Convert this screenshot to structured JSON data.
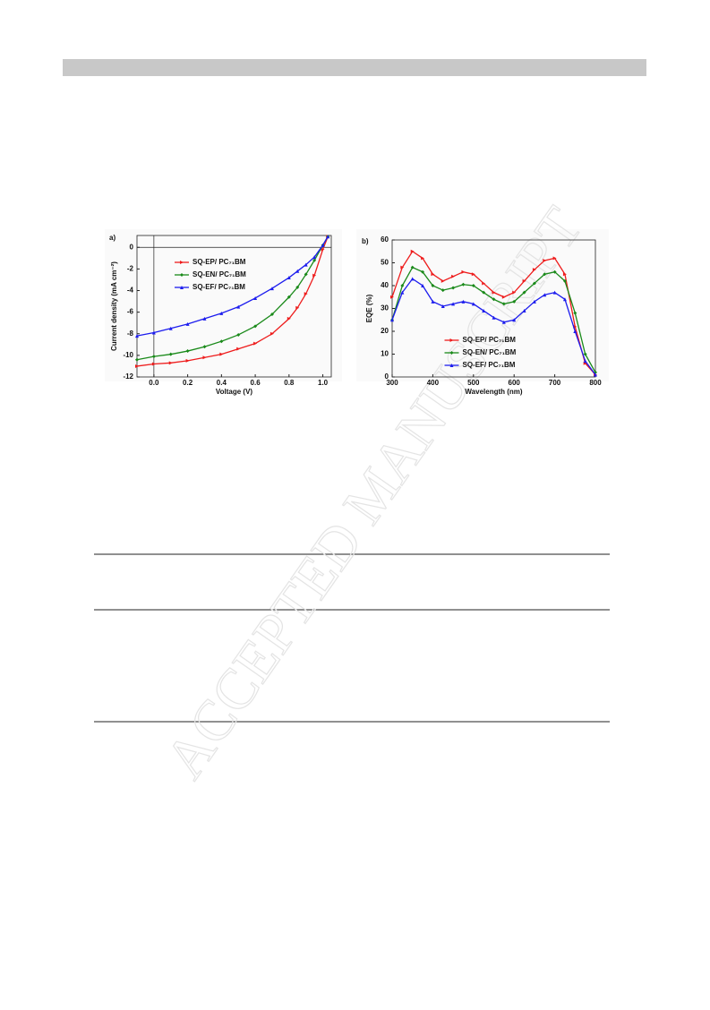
{
  "watermark": "ACCEPTED MANUSCRIPT",
  "chart_data": [
    {
      "type": "line",
      "panel": "a)",
      "xlabel": "Voltage (V)",
      "ylabel": "Current density (mA cm⁻²)",
      "xlim": [
        -0.1,
        1.05
      ],
      "ylim": [
        -12,
        1.1
      ],
      "xticks": [
        {
          "value": 0,
          "label": "0.0"
        },
        0.2,
        0.4,
        0.6,
        0.8,
        {
          "value": 1,
          "label": "1.0"
        }
      ],
      "yticks": [
        -12,
        -10,
        -8,
        -6,
        -4,
        -2,
        0
      ],
      "hline": 0,
      "vline": 0,
      "legend": "upper left",
      "x": [
        -0.1,
        0,
        0.1,
        0.2,
        0.3,
        0.4,
        0.5,
        0.6,
        0.7,
        0.8,
        0.85,
        0.9,
        0.95,
        1.0,
        1.03
      ],
      "series": [
        {
          "name": "SQ-EP/ PC₇₁BM",
          "color": "#ee1c1c",
          "marker": "triangle-right",
          "values": [
            -11.0,
            -10.8,
            -10.7,
            -10.5,
            -10.2,
            -9.9,
            -9.4,
            -8.9,
            -8.0,
            -6.6,
            -5.6,
            -4.3,
            -2.6,
            -0.2,
            1.0
          ]
        },
        {
          "name": "SQ-EN/ PC₇₁BM",
          "color": "#1a8a1a",
          "marker": "diamond",
          "values": [
            -10.4,
            -10.1,
            -9.9,
            -9.6,
            -9.2,
            -8.7,
            -8.1,
            -7.3,
            -6.2,
            -4.6,
            -3.7,
            -2.5,
            -1.2,
            0.2,
            1.0
          ]
        },
        {
          "name": "SQ-EF/ PC₇₁BM",
          "color": "#1c1cee",
          "marker": "triangle-up",
          "values": [
            -8.2,
            -7.9,
            -7.5,
            -7.1,
            -6.6,
            -6.1,
            -5.5,
            -4.7,
            -3.8,
            -2.8,
            -2.2,
            -1.6,
            -0.9,
            0.2,
            1.0
          ]
        }
      ]
    },
    {
      "type": "line",
      "panel": "b)",
      "xlabel": "Wavelength (nm)",
      "ylabel": "EQE (%)",
      "xlim": [
        300,
        800
      ],
      "ylim": [
        0,
        60
      ],
      "xticks": [
        300,
        400,
        500,
        600,
        700,
        800
      ],
      "yticks": [
        0,
        10,
        20,
        30,
        40,
        50,
        60
      ],
      "legend": "lower center",
      "x": [
        300,
        325,
        350,
        375,
        400,
        425,
        450,
        475,
        500,
        525,
        550,
        575,
        600,
        625,
        650,
        675,
        700,
        725,
        750,
        775,
        800
      ],
      "series": [
        {
          "name": "SQ-EP/ PC₇₁BM",
          "color": "#ee1c1c",
          "marker": "triangle-right",
          "values": [
            35,
            48,
            55,
            52,
            45,
            42,
            44,
            46,
            45,
            41,
            37,
            35,
            37,
            42,
            47,
            51,
            52,
            45,
            22,
            6,
            1
          ]
        },
        {
          "name": "SQ-EN/ PC₇₁BM",
          "color": "#1a8a1a",
          "marker": "diamond",
          "values": [
            25,
            40,
            48,
            46,
            40,
            38,
            39,
            40.5,
            40,
            37,
            34,
            32,
            33,
            37,
            41,
            45,
            46,
            42,
            28,
            10,
            2
          ]
        },
        {
          "name": "SQ-EF/ PC₇₁BM",
          "color": "#1c1cee",
          "marker": "triangle-up",
          "values": [
            25,
            37,
            43,
            40,
            33,
            31,
            32,
            33,
            32,
            29,
            26,
            24,
            25,
            29,
            33,
            36,
            37,
            34,
            20,
            7,
            1
          ]
        }
      ]
    }
  ]
}
